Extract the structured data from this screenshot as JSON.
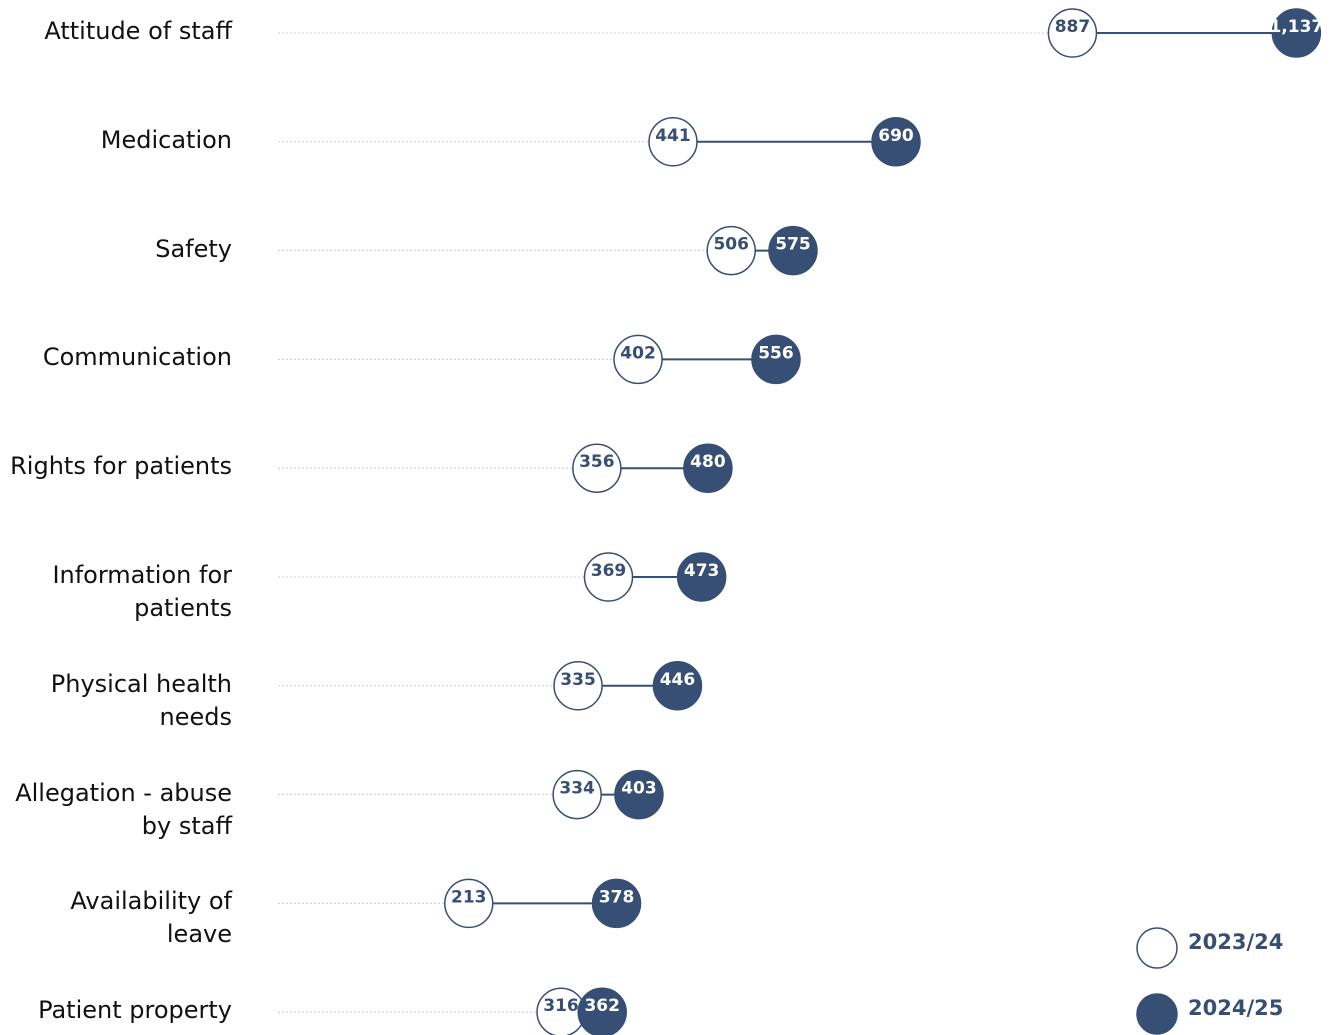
{
  "chart_data": {
    "type": "dumbbell",
    "categories": [
      "Attitude of staff",
      "Medication",
      "Safety",
      "Communication",
      "Rights for patients",
      "Information for patients",
      "Physical health needs",
      "Allegation - abuse by staff",
      "Availability of leave",
      "Patient property"
    ],
    "series": [
      {
        "name": "2023/24",
        "color": "#374f74",
        "marker": "open",
        "values": [
          887,
          441,
          506,
          402,
          356,
          369,
          335,
          334,
          213,
          316
        ]
      },
      {
        "name": "2024/25",
        "color": "#374f74",
        "marker": "filled",
        "values": [
          1137,
          690,
          575,
          556,
          480,
          473,
          446,
          403,
          378,
          362
        ],
        "value_labels": [
          "1,137",
          "690",
          "575",
          "556",
          "480",
          "473",
          "446",
          "403",
          "378",
          "362"
        ]
      }
    ],
    "xlim": [
      0,
      1150
    ],
    "legend": "bottom-right"
  }
}
